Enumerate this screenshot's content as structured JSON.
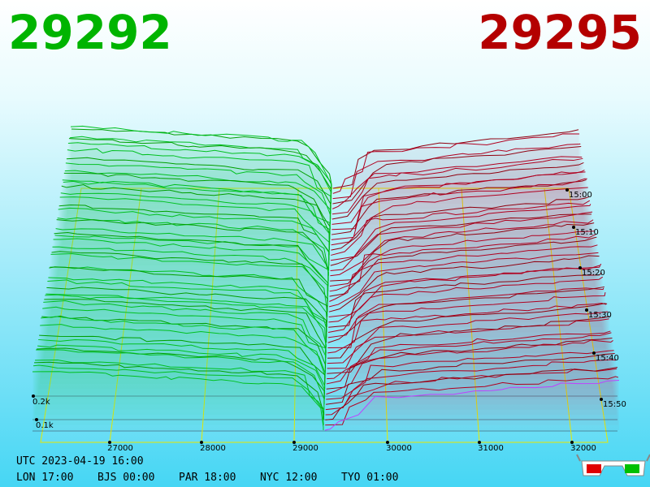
{
  "header": {
    "bid": "29292",
    "ask": "29295"
  },
  "price_axis": {
    "labels": [
      "27000",
      "28000",
      "29000",
      "30000",
      "31000",
      "32000"
    ]
  },
  "time_axis": {
    "labels": [
      "15:00",
      "15:10",
      "15:20",
      "15:30",
      "15:40",
      "15:50"
    ]
  },
  "depth_axis": {
    "labels": [
      "0.2k",
      "0.1k"
    ]
  },
  "footer": {
    "utc": "UTC 2023-04-19 16:00",
    "clocks": [
      "LON 17:00",
      "BJS 00:00",
      "PAR 18:00",
      "NYC 12:00",
      "TYO 01:00"
    ]
  }
}
